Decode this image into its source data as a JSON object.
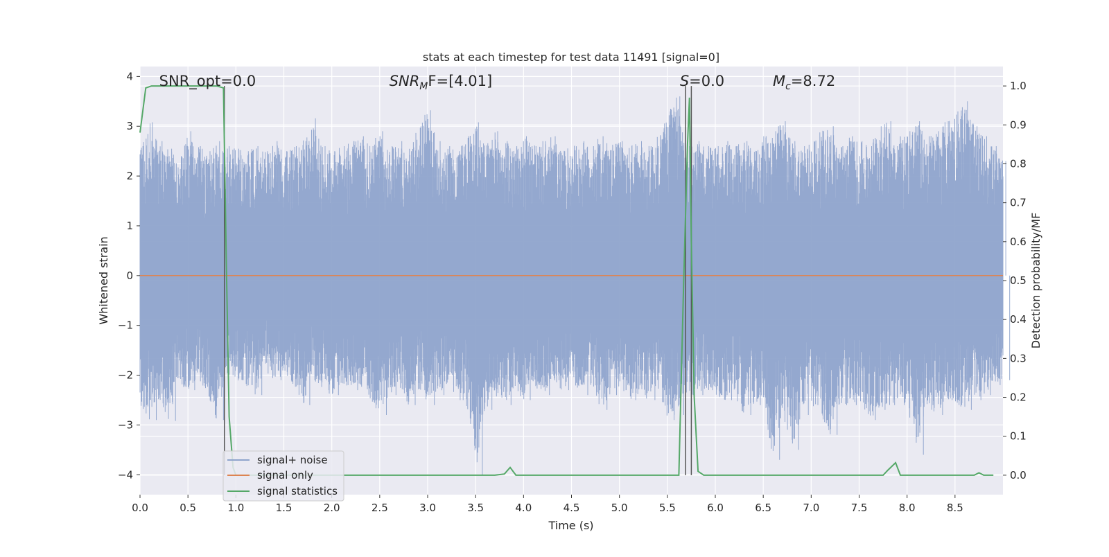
{
  "chart_data": {
    "type": "line",
    "title": "stats at each timestep for test data 11491 [signal=0]",
    "xlabel": "Time (s)",
    "ylabel_left": "Whitened strain",
    "ylabel_right": "Detection probability/MF",
    "xlim": [
      0.0,
      9.0
    ],
    "ylim_left": [
      -4.4,
      4.2
    ],
    "ylim_right": [
      -0.05,
      1.05
    ],
    "xticks": [
      "0.0",
      "0.5",
      "1.0",
      "1.5",
      "2.0",
      "2.5",
      "3.0",
      "3.5",
      "4.0",
      "4.5",
      "5.0",
      "5.5",
      "6.0",
      "6.5",
      "7.0",
      "7.5",
      "8.0",
      "8.5"
    ],
    "xtick_values": [
      0.0,
      0.5,
      1.0,
      1.5,
      2.0,
      2.5,
      3.0,
      3.5,
      4.0,
      4.5,
      5.0,
      5.5,
      6.0,
      6.5,
      7.0,
      7.5,
      8.0,
      8.5
    ],
    "yticks_left": [
      "4",
      "3",
      "2",
      "1",
      "0",
      "−1",
      "−2",
      "−3",
      "−4"
    ],
    "ytick_values_left": [
      4,
      3,
      2,
      1,
      0,
      -1,
      -2,
      -3,
      -4
    ],
    "yticks_right": [
      "1.0",
      "0.9",
      "0.8",
      "0.7",
      "0.6",
      "0.5",
      "0.4",
      "0.3",
      "0.2",
      "0.1",
      "0.0"
    ],
    "ytick_values_right": [
      1.0,
      0.9,
      0.8,
      0.7,
      0.6,
      0.5,
      0.4,
      0.3,
      0.2,
      0.1,
      0.0
    ],
    "grid": true,
    "legend_placement": "lower-left",
    "annotations": [
      {
        "pre": "SNR_opt=0.0",
        "italic": "",
        "sub": "",
        "post": "",
        "x": 0.2
      },
      {
        "pre": "",
        "italic": "SNR",
        "sub": "M",
        "post": "F=[4.01]",
        "x": 2.6
      },
      {
        "pre": "",
        "italic": "S",
        "sub": "",
        "post": "=0.0",
        "x": 5.63
      },
      {
        "pre": "",
        "italic": "M",
        "sub": "c",
        "post": "=8.72",
        "x": 6.6
      }
    ],
    "vlines": [
      0.88,
      5.69,
      5.75
    ],
    "series": [
      {
        "name": "signal+ noise",
        "color": "#8fa4cc",
        "axis": "left",
        "envelope": [
          [
            0.0,
            2.6,
            -2.6
          ],
          [
            0.1,
            3.08,
            -2.9
          ],
          [
            0.2,
            2.7,
            -2.45
          ],
          [
            0.3,
            2.55,
            -2.92
          ],
          [
            0.4,
            2.4,
            -2.2
          ],
          [
            0.5,
            2.9,
            -2.3
          ],
          [
            0.6,
            2.6,
            -2.1
          ],
          [
            0.7,
            2.5,
            -2.4
          ],
          [
            0.8,
            2.7,
            -2.9
          ],
          [
            0.9,
            2.6,
            -2.0
          ],
          [
            1.0,
            2.55,
            -2.1
          ],
          [
            1.1,
            2.5,
            -2.2
          ],
          [
            1.2,
            2.6,
            -2.4
          ],
          [
            1.3,
            2.5,
            -1.9
          ],
          [
            1.4,
            2.7,
            -2.1
          ],
          [
            1.5,
            2.5,
            -2.0
          ],
          [
            1.6,
            2.6,
            -2.2
          ],
          [
            1.7,
            2.7,
            -2.6
          ],
          [
            1.8,
            3.16,
            -2.1
          ],
          [
            1.9,
            2.6,
            -2.3
          ],
          [
            2.0,
            2.5,
            -2.4
          ],
          [
            2.1,
            2.6,
            -2.2
          ],
          [
            2.2,
            2.7,
            -2.3
          ],
          [
            2.3,
            2.8,
            -2.2
          ],
          [
            2.4,
            2.6,
            -2.5
          ],
          [
            2.5,
            2.9,
            -2.8
          ],
          [
            2.6,
            2.6,
            -2.4
          ],
          [
            2.7,
            2.7,
            -2.2
          ],
          [
            2.8,
            2.5,
            -2.6
          ],
          [
            2.9,
            3.0,
            -2.3
          ],
          [
            3.0,
            3.32,
            -2.6
          ],
          [
            3.1,
            2.7,
            -2.4
          ],
          [
            3.2,
            2.6,
            -2.2
          ],
          [
            3.3,
            2.5,
            -2.5
          ],
          [
            3.4,
            2.8,
            -2.6
          ],
          [
            3.5,
            3.08,
            -4.0
          ],
          [
            3.6,
            2.6,
            -2.7
          ],
          [
            3.7,
            2.9,
            -2.4
          ],
          [
            3.8,
            2.7,
            -2.6
          ],
          [
            3.9,
            2.6,
            -2.3
          ],
          [
            4.0,
            2.8,
            -2.5
          ],
          [
            4.1,
            2.6,
            -2.2
          ],
          [
            4.2,
            2.7,
            -2.4
          ],
          [
            4.3,
            2.8,
            -2.1
          ],
          [
            4.4,
            2.5,
            -2.3
          ],
          [
            4.5,
            2.6,
            -2.2
          ],
          [
            4.6,
            2.7,
            -2.4
          ],
          [
            4.7,
            2.6,
            -2.2
          ],
          [
            4.8,
            2.8,
            -2.7
          ],
          [
            4.9,
            2.6,
            -2.4
          ],
          [
            5.0,
            2.7,
            -2.3
          ],
          [
            5.1,
            2.6,
            -2.5
          ],
          [
            5.2,
            2.7,
            -2.4
          ],
          [
            5.3,
            2.6,
            -2.5
          ],
          [
            5.4,
            2.8,
            -2.3
          ],
          [
            5.5,
            3.3,
            -2.9
          ],
          [
            5.6,
            3.6,
            -2.8
          ],
          [
            5.7,
            2.6,
            -2.4
          ],
          [
            5.8,
            2.7,
            -2.4
          ],
          [
            5.9,
            2.6,
            -2.3
          ],
          [
            6.0,
            2.6,
            -2.4
          ],
          [
            6.1,
            2.7,
            -2.5
          ],
          [
            6.2,
            2.6,
            -2.4
          ],
          [
            6.3,
            2.7,
            -2.8
          ],
          [
            6.4,
            2.5,
            -2.6
          ],
          [
            6.5,
            2.8,
            -2.5
          ],
          [
            6.6,
            2.9,
            -3.7
          ],
          [
            6.7,
            3.1,
            -2.8
          ],
          [
            6.8,
            2.7,
            -3.5
          ],
          [
            6.9,
            2.6,
            -2.8
          ],
          [
            7.0,
            2.7,
            -2.6
          ],
          [
            7.1,
            2.9,
            -2.8
          ],
          [
            7.2,
            3.0,
            -3.2
          ],
          [
            7.3,
            2.6,
            -2.6
          ],
          [
            7.4,
            2.8,
            -2.6
          ],
          [
            7.5,
            2.7,
            -2.5
          ],
          [
            7.6,
            2.6,
            -2.9
          ],
          [
            7.7,
            3.0,
            -2.7
          ],
          [
            7.8,
            3.1,
            -2.6
          ],
          [
            7.9,
            2.8,
            -2.6
          ],
          [
            8.0,
            2.9,
            -2.6
          ],
          [
            8.1,
            3.1,
            -3.6
          ],
          [
            8.2,
            2.8,
            -2.6
          ],
          [
            8.3,
            2.9,
            -2.8
          ],
          [
            8.4,
            3.1,
            -2.5
          ],
          [
            8.5,
            3.3,
            -2.6
          ],
          [
            8.6,
            3.5,
            -2.7
          ],
          [
            8.7,
            3.0,
            -2.5
          ],
          [
            8.8,
            2.8,
            -2.4
          ],
          [
            8.9,
            2.6,
            -2.2
          ],
          [
            9.0,
            2.3,
            -2.1
          ]
        ]
      },
      {
        "name": "signal only",
        "color": "#dd8452",
        "axis": "left",
        "x": [
          0.0,
          9.0
        ],
        "y": [
          0.0,
          0.0
        ]
      },
      {
        "name": "signal statistics",
        "color": "#55a868",
        "axis": "right",
        "x": [
          0.0,
          0.06,
          0.12,
          0.2,
          0.4,
          0.6,
          0.8,
          0.87,
          0.9,
          0.93,
          0.97,
          1.0,
          3.7,
          3.8,
          3.86,
          3.92,
          4.0,
          5.62,
          5.67,
          5.71,
          5.73,
          5.75,
          5.78,
          5.82,
          5.88,
          6.0,
          7.75,
          7.8,
          7.88,
          7.93,
          8.0,
          8.7,
          8.75,
          8.8,
          8.9
        ],
        "y": [
          0.88,
          0.995,
          1.0,
          1.0,
          1.0,
          1.0,
          1.0,
          0.995,
          0.55,
          0.15,
          0.02,
          0.0,
          0.0,
          0.003,
          0.02,
          0.0,
          0.0,
          0.0,
          0.5,
          0.85,
          0.97,
          0.6,
          0.2,
          0.01,
          0.0,
          0.0,
          0.0,
          0.013,
          0.032,
          0.0,
          0.0,
          0.0,
          0.006,
          0.0,
          0.0
        ]
      }
    ]
  }
}
